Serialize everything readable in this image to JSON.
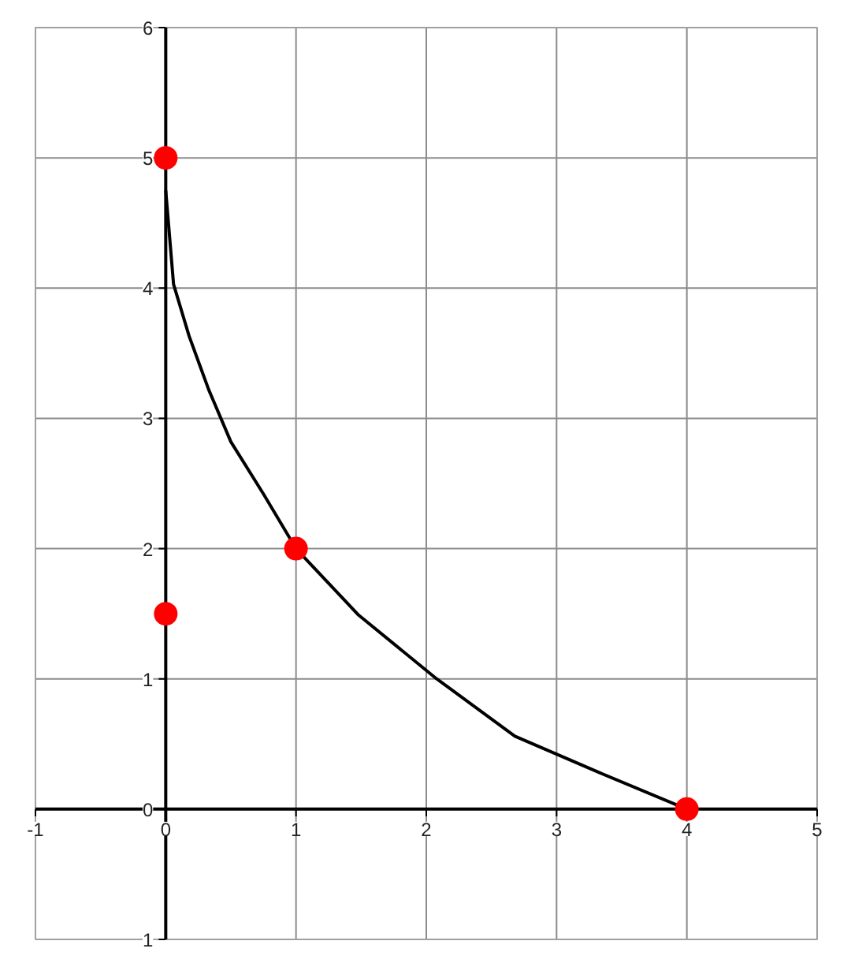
{
  "chart_data": {
    "type": "scatter",
    "series": [
      {
        "type": "line",
        "color": "#000000",
        "x": [
          0,
          0.06,
          0.18,
          0.33,
          0.5,
          0.75,
          1,
          1.48,
          2.08,
          2.68,
          3.33,
          4
        ],
        "values": [
          4.75,
          4.03,
          3.63,
          3.22,
          2.82,
          2.42,
          2,
          1.49,
          1.0,
          0.56,
          0.28,
          0
        ]
      },
      {
        "color": "#ff0000",
        "marker": "circle",
        "x": [
          0,
          0,
          1,
          4
        ],
        "values": [
          5,
          1.5,
          2,
          0
        ]
      }
    ],
    "xlim": [
      -1,
      5
    ],
    "ylim": [
      -1,
      6
    ],
    "xticks": [
      {
        "value": -1,
        "label": "-1"
      },
      0,
      1,
      2,
      3,
      4,
      5
    ],
    "yticks": [
      {
        "value": -1,
        "label": "1"
      },
      0,
      1,
      2,
      3,
      4,
      5,
      6
    ],
    "grid": true,
    "line_style": "solid"
  }
}
